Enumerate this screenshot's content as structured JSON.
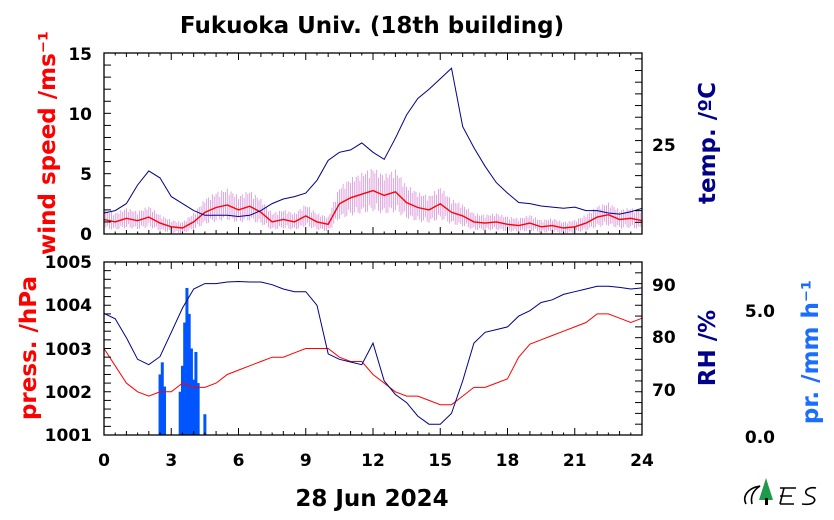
{
  "title": "Fukuoka Univ. (18th building)",
  "date_label": "28 Jun 2024",
  "colors": {
    "wind": "#ff0000",
    "wind_raw": "#d890d8",
    "temp": "#00008b",
    "press": "#ff0000",
    "rh": "#00008b",
    "precip": "#0055ff",
    "axis": "#000000"
  },
  "chart_data": [
    {
      "type": "line",
      "panel": "top",
      "ylabel_left": "wind speed /ms⁻¹",
      "ylabel_right": "temp. /ºC",
      "x_ticks": [
        "0",
        "3",
        "6",
        "9",
        "12",
        "15",
        "18",
        "21",
        "24"
      ],
      "xlim": [
        0,
        24
      ],
      "ylim_left": [
        0,
        15
      ],
      "yticks_left": [
        "0",
        "5",
        "10",
        "15"
      ],
      "yticks_right": [
        "25"
      ],
      "right_tick_value": 25,
      "series": [
        {
          "axis": "left",
          "x": [
            0,
            0.5,
            1,
            1.5,
            2,
            2.5,
            3,
            3.5,
            4,
            4.5,
            5,
            5.5,
            6,
            6.5,
            7,
            7.5,
            8,
            8.5,
            9,
            9.5,
            10,
            10.5,
            11,
            11.5,
            12,
            12.5,
            13,
            13.5,
            14,
            14.5,
            15,
            15.5,
            16,
            16.5,
            17,
            17.5,
            18,
            18.5,
            19,
            19.5,
            20,
            20.5,
            21,
            21.5,
            22,
            22.5,
            23,
            23.5,
            24
          ],
          "y": [
            1.2,
            1.0,
            1.3,
            1.1,
            1.4,
            0.9,
            0.6,
            0.5,
            1.0,
            1.8,
            2.2,
            2.4,
            2.0,
            2.3,
            1.8,
            1.0,
            1.2,
            1.0,
            1.5,
            1.0,
            0.8,
            2.5,
            3.0,
            3.3,
            3.6,
            3.2,
            3.5,
            2.6,
            2.2,
            2.0,
            2.5,
            1.8,
            1.5,
            1.0,
            0.9,
            1.0,
            0.8,
            0.7,
            0.9,
            0.6,
            0.7,
            0.5,
            0.6,
            0.9,
            1.4,
            1.6,
            1.2,
            1.3,
            1.1
          ]
        },
        {
          "axis": "right",
          "x": [
            0,
            0.5,
            1,
            1.5,
            2,
            2.5,
            3,
            3.5,
            4,
            4.5,
            5,
            5.5,
            6,
            6.5,
            7,
            7.5,
            8,
            8.5,
            9,
            9.5,
            10,
            10.5,
            11,
            11.5,
            12,
            12.5,
            13,
            13.5,
            14,
            14.5,
            15,
            15.5,
            16,
            16.5,
            17,
            17.5,
            18,
            18.5,
            19,
            19.5,
            20,
            20.5,
            21,
            21.5,
            22,
            22.5,
            23,
            23.5,
            24
          ],
          "y": [
            20.8,
            21.0,
            21.6,
            23.2,
            24.4,
            23.8,
            22.2,
            21.6,
            21.0,
            20.6,
            20.6,
            20.6,
            20.5,
            20.6,
            21.0,
            21.6,
            22.0,
            22.2,
            22.5,
            23.6,
            25.3,
            26.0,
            26.2,
            26.8,
            26.0,
            25.4,
            27.2,
            29.2,
            30.6,
            31.4,
            32.3,
            33.2,
            28.2,
            26.4,
            24.8,
            23.4,
            22.5,
            21.7,
            21.6,
            21.4,
            21.3,
            21.2,
            21.3,
            21.0,
            21.0,
            20.8,
            20.7,
            20.9,
            21.2
          ]
        }
      ]
    },
    {
      "type": "line",
      "panel": "bottom",
      "ylabel_left": "press. /hPa",
      "ylabel_right": "RH /%",
      "ylabel_right2": "pr. /mm h⁻¹",
      "xlabel": "28 Jun 2024",
      "x_ticks": [
        "0",
        "3",
        "6",
        "9",
        "12",
        "15",
        "18",
        "21",
        "24"
      ],
      "xlim": [
        0,
        24
      ],
      "ylim_left": [
        1001,
        1005
      ],
      "yticks_left": [
        "1001",
        "1002",
        "1003",
        "1004",
        "1005"
      ],
      "ylim_right": [
        62,
        94
      ],
      "yticks_right": [
        "70",
        "80",
        "90"
      ],
      "ylim_right2": [
        0,
        10
      ],
      "yticks_right2": [
        "0.0",
        "5.0"
      ],
      "series": [
        {
          "axis": "left",
          "x": [
            0,
            0.5,
            1,
            1.5,
            2,
            2.5,
            3,
            3.5,
            4,
            4.5,
            5,
            5.5,
            6,
            6.5,
            7,
            7.5,
            8,
            8.5,
            9,
            9.5,
            10,
            10.5,
            11,
            11.5,
            12,
            12.5,
            13,
            13.5,
            14,
            14.5,
            15,
            15.5,
            16,
            16.5,
            17,
            17.5,
            18,
            18.5,
            19,
            19.5,
            20,
            20.5,
            21,
            21.5,
            22,
            22.5,
            23,
            23.5,
            24
          ],
          "y": [
            1003.0,
            1002.6,
            1002.2,
            1002.0,
            1001.9,
            1002.0,
            1002.0,
            1002.2,
            1002.1,
            1002.1,
            1002.2,
            1002.4,
            1002.5,
            1002.6,
            1002.7,
            1002.8,
            1002.8,
            1002.9,
            1003.0,
            1003.0,
            1003.0,
            1002.8,
            1002.7,
            1002.7,
            1002.4,
            1002.2,
            1002.0,
            1001.9,
            1001.9,
            1001.8,
            1001.7,
            1001.7,
            1001.9,
            1002.1,
            1002.1,
            1002.2,
            1002.3,
            1002.8,
            1003.1,
            1003.2,
            1003.3,
            1003.4,
            1003.5,
            1003.6,
            1003.8,
            1003.8,
            1003.7,
            1003.6,
            1003.7
          ]
        },
        {
          "axis": "right",
          "x": [
            0,
            0.5,
            1,
            1.5,
            2,
            2.5,
            3,
            3.5,
            4,
            4.5,
            5,
            5.5,
            6,
            6.5,
            7,
            7.5,
            8,
            8.5,
            9,
            9.5,
            10,
            10.5,
            11,
            11.5,
            12,
            12.5,
            13,
            13.5,
            14,
            14.5,
            15,
            15.5,
            16,
            16.5,
            17,
            17.5,
            18,
            18.5,
            19,
            19.5,
            20,
            20.5,
            21,
            21.5,
            22,
            22.5,
            23,
            23.5,
            24
          ],
          "y": [
            84.5,
            83.5,
            80.0,
            76.0,
            75.0,
            76.5,
            81.0,
            85.5,
            89.0,
            90.0,
            90.0,
            90.3,
            90.4,
            90.3,
            90.3,
            89.8,
            89.0,
            88.5,
            88.5,
            86.0,
            77.0,
            76.0,
            75.5,
            75.0,
            79.0,
            72.0,
            69.5,
            68.0,
            65.5,
            64.0,
            64.0,
            66.0,
            72.0,
            79.0,
            81.0,
            81.5,
            82.0,
            84.0,
            85.0,
            86.5,
            87.0,
            88.0,
            88.5,
            89.0,
            89.5,
            89.5,
            89.3,
            89.0,
            89.2
          ]
        },
        {
          "axis": "right2",
          "type": "bar",
          "x": [
            2.5,
            2.6,
            2.7,
            3.4,
            3.5,
            3.6,
            3.7,
            3.8,
            3.9,
            4.0,
            4.1,
            4.2,
            4.5
          ],
          "y": [
            3.5,
            4.2,
            2.8,
            2.5,
            4.0,
            6.5,
            8.5,
            7.0,
            5.0,
            3.2,
            4.8,
            3.0,
            1.2
          ]
        }
      ]
    }
  ]
}
